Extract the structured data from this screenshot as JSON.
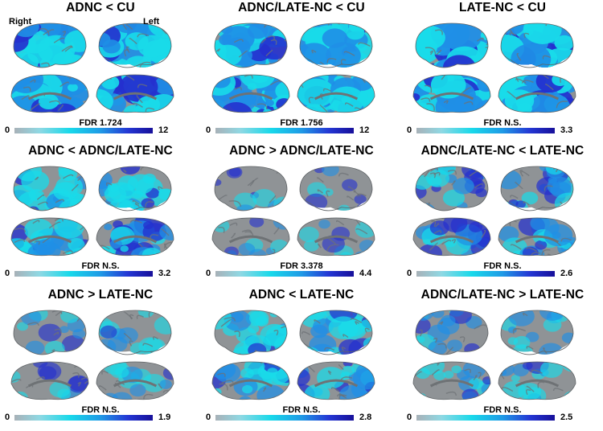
{
  "hemisphere_labels": {
    "right": "Right",
    "left": "Left"
  },
  "panels": [
    {
      "title": "ADNC < CU",
      "fdr": "FDR 1.724",
      "scale_min": "0",
      "scale_max": "12",
      "activation": 0.9
    },
    {
      "title": "ADNC/LATE-NC < CU",
      "fdr": "FDR 1.756",
      "scale_min": "0",
      "scale_max": "12",
      "activation": 0.85
    },
    {
      "title": "LATE-NC < CU",
      "fdr": "FDR N.S.",
      "scale_min": "0",
      "scale_max": "3.3",
      "activation": 0.95
    },
    {
      "title": "ADNC < ADNC/LATE-NC",
      "fdr": "FDR N.S.",
      "scale_min": "0",
      "scale_max": "3.2",
      "activation": 0.55
    },
    {
      "title": "ADNC > ADNC/LATE-NC",
      "fdr": "FDR 3.378",
      "scale_min": "0",
      "scale_max": "4.4",
      "activation": 0.12
    },
    {
      "title": "ADNC/LATE-NC < LATE-NC",
      "fdr": "FDR N.S.",
      "scale_min": "0",
      "scale_max": "2.6",
      "activation": 0.4
    },
    {
      "title": "ADNC > LATE-NC",
      "fdr": "FDR N.S.",
      "scale_min": "0",
      "scale_max": "1.9",
      "activation": 0.18
    },
    {
      "title": "ADNC < LATE-NC",
      "fdr": "FDR N.S.",
      "scale_min": "0",
      "scale_max": "2.8",
      "activation": 0.45
    },
    {
      "title": "ADNC/LATE-NC > LATE-NC",
      "fdr": "FDR N.S.",
      "scale_min": "0",
      "scale_max": "2.5",
      "activation": 0.25
    }
  ],
  "colors": {
    "cortex": "#8f9396",
    "cortex_dark": "#6e7275",
    "low": "#19dbe9",
    "mid": "#1f8fe6",
    "high": "#2430cf",
    "colorbar": [
      "#a8b1b8",
      "#18d9ea",
      "#1f9be6",
      "#2437d4",
      "#17109a"
    ]
  }
}
